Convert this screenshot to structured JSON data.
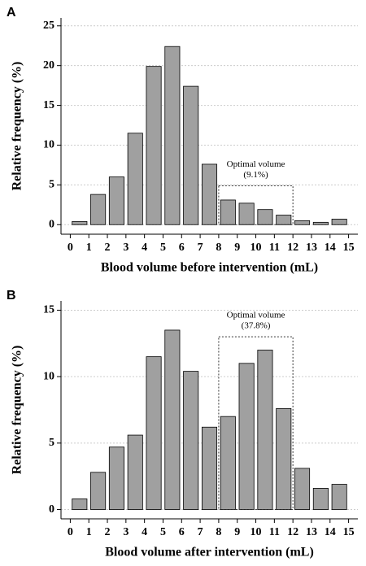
{
  "chart_data": [
    {
      "type": "histogram",
      "panel": "A",
      "xlabel": "Blood volume before intervention (mL)",
      "ylabel": "Relative frequency (%)",
      "bins": [
        0,
        1,
        2,
        3,
        4,
        5,
        6,
        7,
        8,
        9,
        10,
        11,
        12,
        13,
        14,
        15
      ],
      "values": [
        0.4,
        3.8,
        6.0,
        11.5,
        19.9,
        22.4,
        17.4,
        7.6,
        3.1,
        2.7,
        1.9,
        1.2,
        0.5,
        0.3,
        0.7
      ],
      "color": "#a0a0a0",
      "xlim": [
        -0.5,
        15.5
      ],
      "xticks": [
        0,
        1,
        2,
        3,
        4,
        5,
        6,
        7,
        8,
        9,
        10,
        11,
        12,
        13,
        14,
        15
      ],
      "ylim": [
        -1.2,
        26
      ],
      "yticks": [
        0,
        5,
        10,
        15,
        20,
        25
      ],
      "grid": true,
      "annotation": {
        "lines": [
          "Optimal volume",
          "(9.1%)"
        ],
        "x": [
          8,
          12
        ],
        "y": [
          0,
          4.9
        ]
      }
    },
    {
      "type": "histogram",
      "panel": "B",
      "xlabel": "Blood volume after intervention (mL)",
      "ylabel": "Relative frequency (%)",
      "bins": [
        0,
        1,
        2,
        3,
        4,
        5,
        6,
        7,
        8,
        9,
        10,
        11,
        12,
        13,
        14,
        15
      ],
      "values": [
        0.8,
        2.8,
        4.7,
        5.6,
        11.5,
        13.5,
        10.4,
        6.2,
        7.0,
        11.0,
        12.0,
        7.6,
        3.1,
        1.6,
        1.9
      ],
      "color": "#a0a0a0",
      "xlim": [
        -0.5,
        15.5
      ],
      "xticks": [
        0,
        1,
        2,
        3,
        4,
        5,
        6,
        7,
        8,
        9,
        10,
        11,
        12,
        13,
        14,
        15
      ],
      "ylim": [
        -0.7,
        15.7
      ],
      "yticks": [
        0,
        5,
        10,
        15
      ],
      "grid": true,
      "annotation": {
        "lines": [
          "Optimal volume",
          "(37.8%)"
        ],
        "x": [
          8,
          12
        ],
        "y": [
          0,
          13
        ]
      }
    }
  ]
}
